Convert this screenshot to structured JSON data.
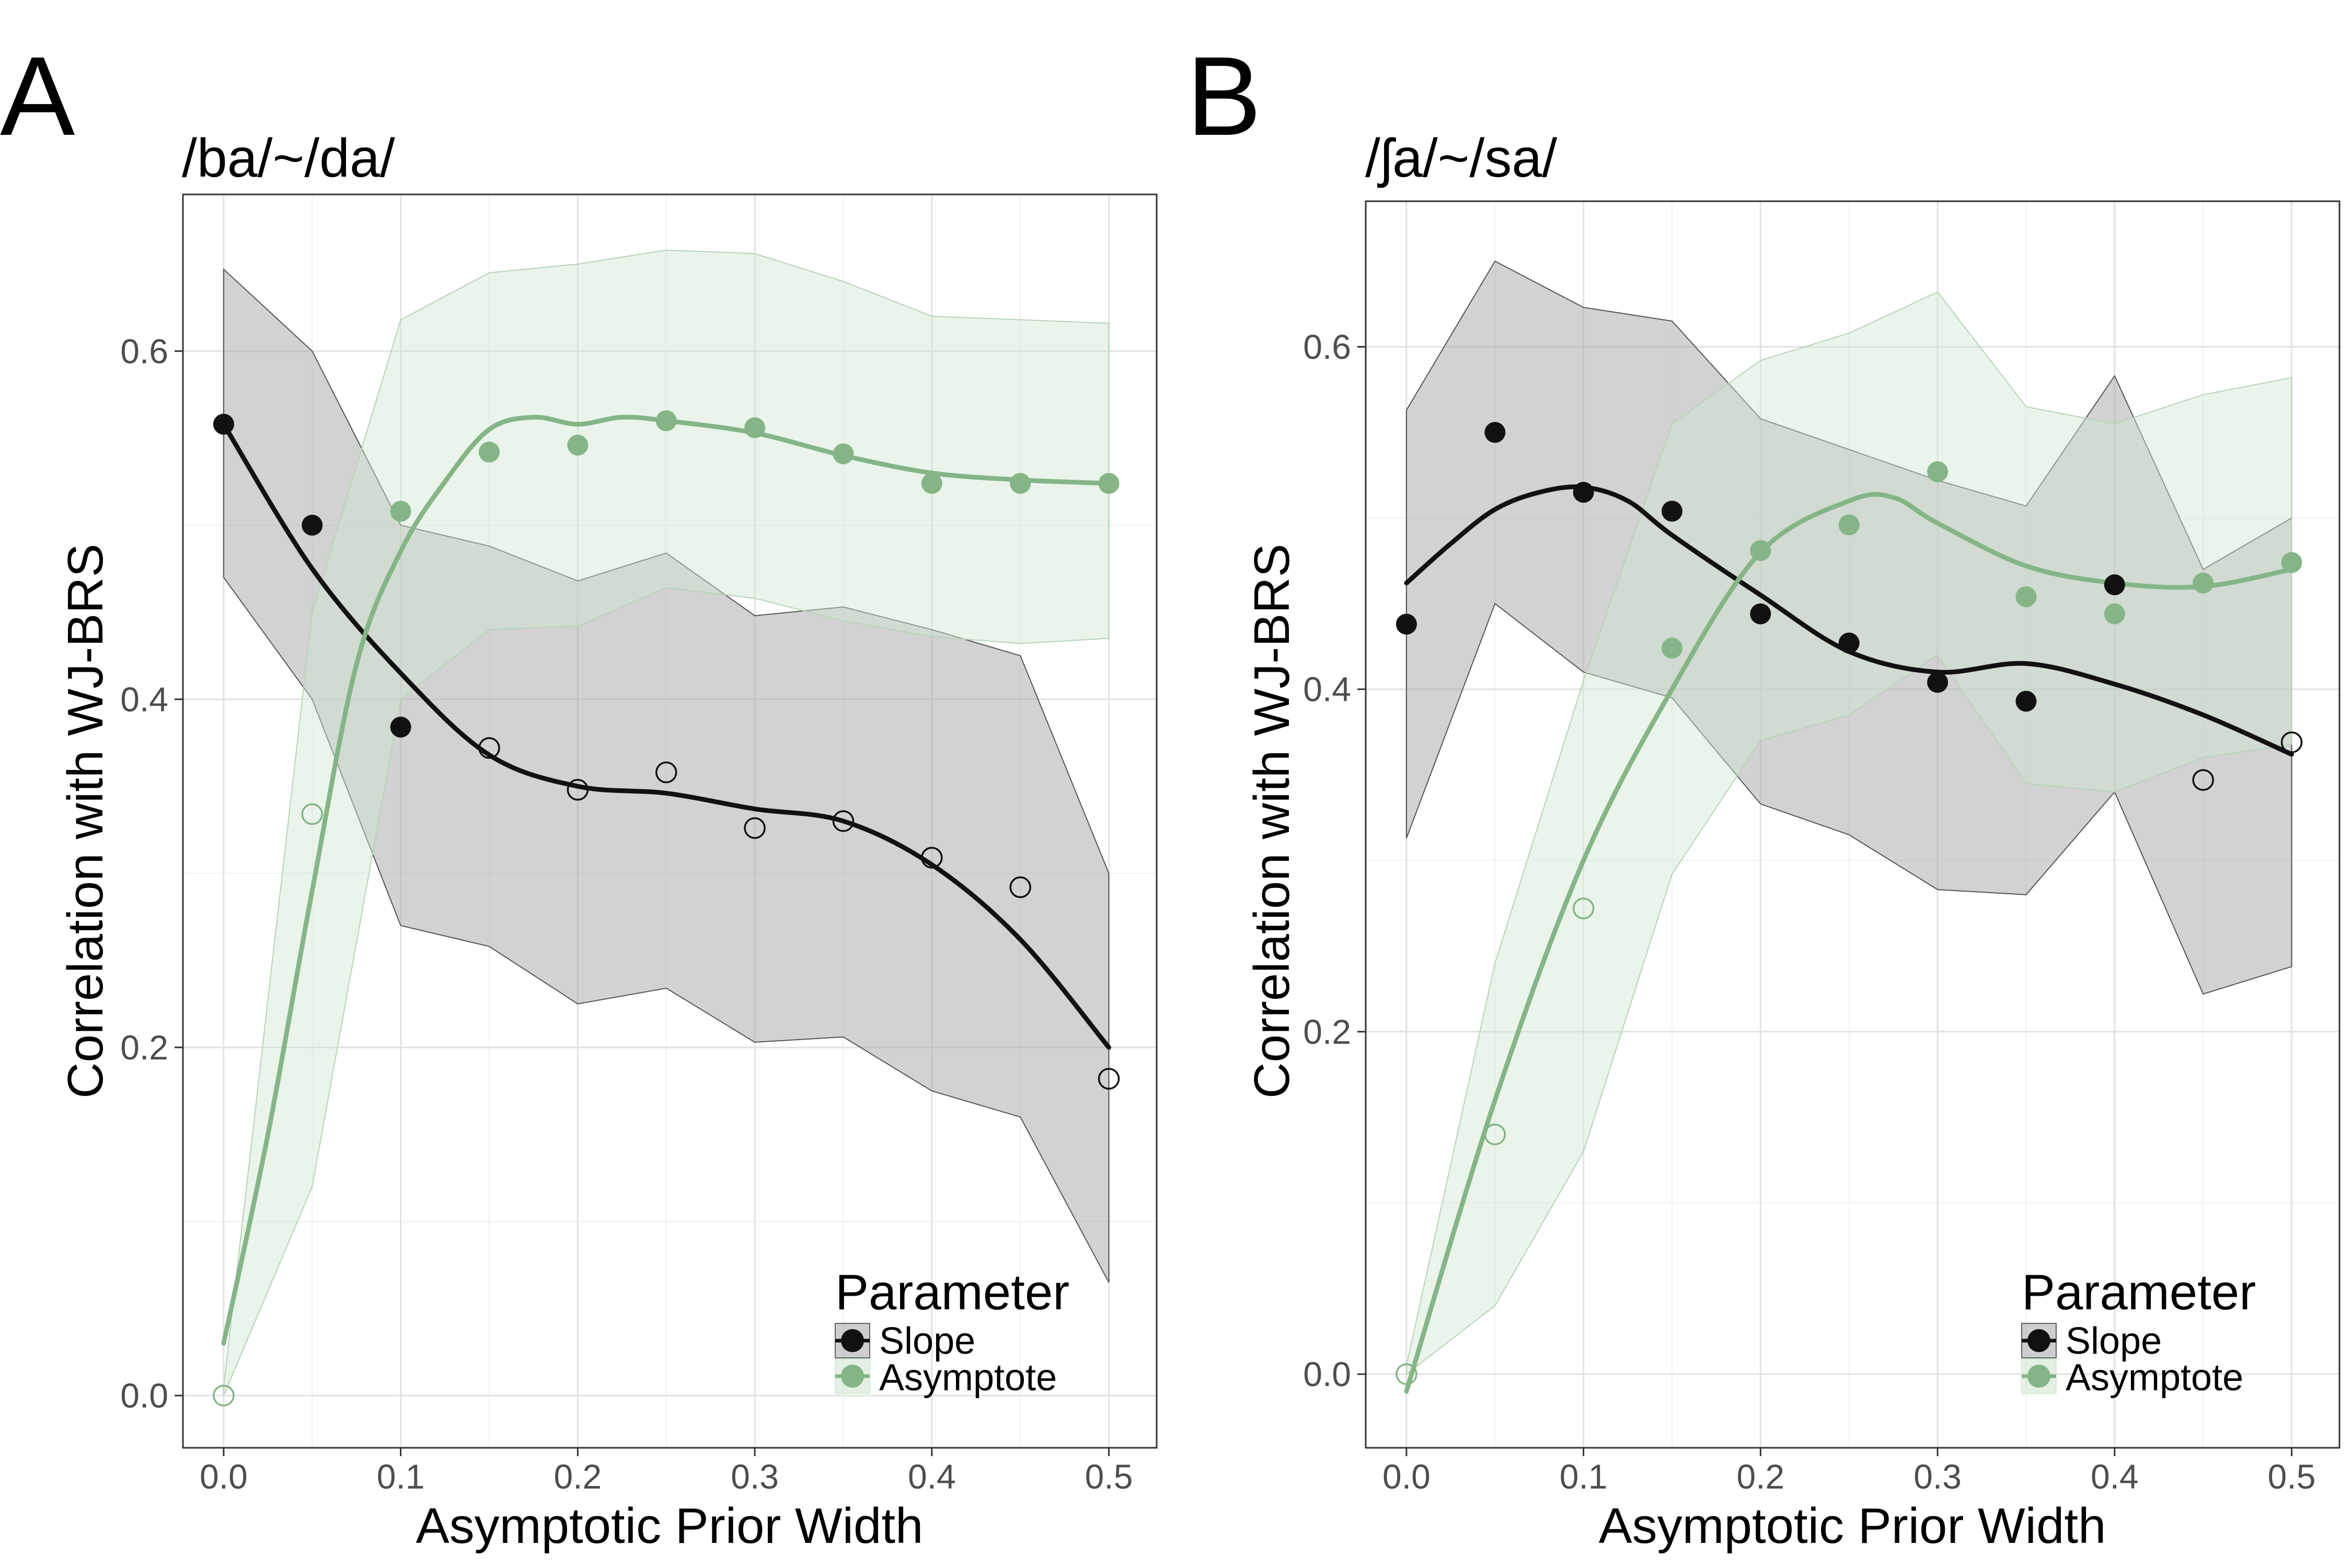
{
  "chart_data": [
    {
      "type": "scatter",
      "panel": "A",
      "title": "/ba/~/da/",
      "xlabel": "Asymptotic Prior Width",
      "ylabel": "Correlation with WJ-BRS",
      "xlim": [
        -0.023,
        0.527
      ],
      "ylim": [
        -0.03,
        0.69
      ],
      "xticks": [
        0,
        0.1,
        0.2,
        0.3,
        0.4,
        0.5
      ],
      "xtick_labels": [
        "0.0",
        "0.1",
        "0.2",
        "0.3",
        "0.4",
        "0.5"
      ],
      "yticks": [
        0,
        0.2,
        0.4,
        0.6
      ],
      "ytick_labels": [
        "0.0",
        "0.2",
        "0.4",
        "0.6"
      ],
      "grid": true,
      "legend": {
        "title": "Parameter",
        "position": "bottom-right",
        "entries": [
          "Slope",
          "Asymptote"
        ]
      },
      "x": [
        0,
        0.05,
        0.1,
        0.15,
        0.2,
        0.25,
        0.3,
        0.35,
        0.4,
        0.45,
        0.5
      ],
      "series": [
        {
          "name": "Slope",
          "color": "#111111",
          "ribbon_color": "#a6a6a6",
          "values": [
            0.558,
            0.5,
            0.384,
            0.372,
            0.348,
            0.358,
            0.326,
            0.33,
            0.309,
            0.292,
            0.182
          ],
          "filled": [
            true,
            true,
            true,
            false,
            false,
            false,
            false,
            false,
            false,
            false,
            false
          ],
          "ribbon_lower": [
            0.47,
            0.4,
            0.27,
            0.258,
            0.225,
            0.234,
            0.203,
            0.206,
            0.175,
            0.16,
            0.065
          ],
          "ribbon_upper": [
            0.647,
            0.6,
            0.5,
            0.488,
            0.468,
            0.484,
            0.448,
            0.453,
            0.44,
            0.425,
            0.3
          ],
          "smooth_x": [
            0,
            0.05,
            0.1,
            0.15,
            0.2,
            0.25,
            0.3,
            0.35,
            0.4,
            0.45,
            0.5
          ],
          "smooth_y": [
            0.558,
            0.475,
            0.415,
            0.368,
            0.35,
            0.346,
            0.337,
            0.33,
            0.305,
            0.262,
            0.2
          ]
        },
        {
          "name": "Asymptote",
          "color": "#85b587",
          "ribbon_color": "#d1e6d1",
          "values": [
            0.0,
            0.334,
            0.508,
            0.542,
            0.546,
            0.56,
            0.556,
            0.541,
            0.524,
            0.524,
            0.524
          ],
          "filled": [
            false,
            false,
            true,
            true,
            true,
            true,
            true,
            true,
            true,
            true,
            true
          ],
          "ribbon_lower": [
            0.0,
            0.12,
            0.4,
            0.44,
            0.442,
            0.464,
            0.458,
            0.445,
            0.436,
            0.432,
            0.435
          ],
          "ribbon_upper": [
            0.005,
            0.45,
            0.618,
            0.645,
            0.65,
            0.658,
            0.656,
            0.64,
            0.62,
            0.618,
            0.616
          ],
          "smooth_x": [
            0,
            0.025,
            0.05,
            0.075,
            0.1,
            0.125,
            0.15,
            0.175,
            0.2,
            0.225,
            0.25,
            0.3,
            0.35,
            0.4,
            0.45,
            0.5
          ],
          "smooth_y": [
            0.03,
            0.15,
            0.29,
            0.42,
            0.485,
            0.525,
            0.555,
            0.562,
            0.558,
            0.562,
            0.56,
            0.553,
            0.54,
            0.53,
            0.526,
            0.524
          ]
        }
      ]
    },
    {
      "type": "scatter",
      "panel": "B",
      "title": "/ʃa/~/sa/",
      "xlabel": "Asymptotic Prior Width",
      "ylabel": "Correlation with WJ-BRS",
      "xlim": [
        -0.023,
        0.527
      ],
      "ylim": [
        -0.043,
        0.685
      ],
      "xticks": [
        0,
        0.1,
        0.2,
        0.3,
        0.4,
        0.5
      ],
      "xtick_labels": [
        "0.0",
        "0.1",
        "0.2",
        "0.3",
        "0.4",
        "0.5"
      ],
      "yticks": [
        0,
        0.2,
        0.4,
        0.6
      ],
      "ytick_labels": [
        "0.0",
        "0.2",
        "0.4",
        "0.6"
      ],
      "grid": true,
      "legend": {
        "title": "Parameter",
        "position": "bottom-right",
        "entries": [
          "Slope",
          "Asymptote"
        ]
      },
      "x": [
        0,
        0.05,
        0.1,
        0.15,
        0.2,
        0.25,
        0.3,
        0.35,
        0.4,
        0.45,
        0.5
      ],
      "series": [
        {
          "name": "Slope",
          "color": "#111111",
          "ribbon_color": "#a6a6a6",
          "values": [
            0.438,
            0.55,
            0.515,
            0.504,
            0.444,
            0.427,
            0.404,
            0.393,
            0.461,
            0.347,
            0.369
          ],
          "filled": [
            true,
            true,
            true,
            true,
            true,
            true,
            true,
            true,
            true,
            false,
            false
          ],
          "ribbon_lower": [
            0.313,
            0.45,
            0.41,
            0.395,
            0.333,
            0.315,
            0.283,
            0.28,
            0.34,
            0.222,
            0.238
          ],
          "ribbon_upper": [
            0.563,
            0.65,
            0.623,
            0.615,
            0.558,
            0.54,
            0.522,
            0.507,
            0.583,
            0.47,
            0.5
          ],
          "smooth_x": [
            0,
            0.025,
            0.05,
            0.075,
            0.1,
            0.125,
            0.15,
            0.2,
            0.25,
            0.3,
            0.35,
            0.4,
            0.45,
            0.5
          ],
          "smooth_y": [
            0.462,
            0.485,
            0.505,
            0.515,
            0.518,
            0.51,
            0.49,
            0.455,
            0.422,
            0.41,
            0.415,
            0.403,
            0.385,
            0.362
          ]
        },
        {
          "name": "Asymptote",
          "color": "#85b587",
          "ribbon_color": "#d1e6d1",
          "values": [
            0.0,
            0.14,
            0.272,
            0.424,
            0.481,
            0.496,
            0.527,
            0.454,
            0.444,
            0.462,
            0.474
          ],
          "filled": [
            false,
            false,
            false,
            true,
            true,
            true,
            true,
            true,
            true,
            true,
            true
          ],
          "ribbon_lower": [
            0.0,
            0.04,
            0.13,
            0.292,
            0.37,
            0.385,
            0.42,
            0.345,
            0.34,
            0.36,
            0.368
          ],
          "ribbon_upper": [
            0.005,
            0.24,
            0.405,
            0.555,
            0.592,
            0.608,
            0.632,
            0.565,
            0.555,
            0.572,
            0.582
          ],
          "smooth_x": [
            0,
            0.05,
            0.1,
            0.15,
            0.2,
            0.25,
            0.275,
            0.3,
            0.35,
            0.4,
            0.45,
            0.5
          ],
          "smooth_y": [
            -0.01,
            0.16,
            0.3,
            0.4,
            0.48,
            0.51,
            0.512,
            0.497,
            0.472,
            0.462,
            0.46,
            0.47
          ]
        }
      ]
    }
  ]
}
